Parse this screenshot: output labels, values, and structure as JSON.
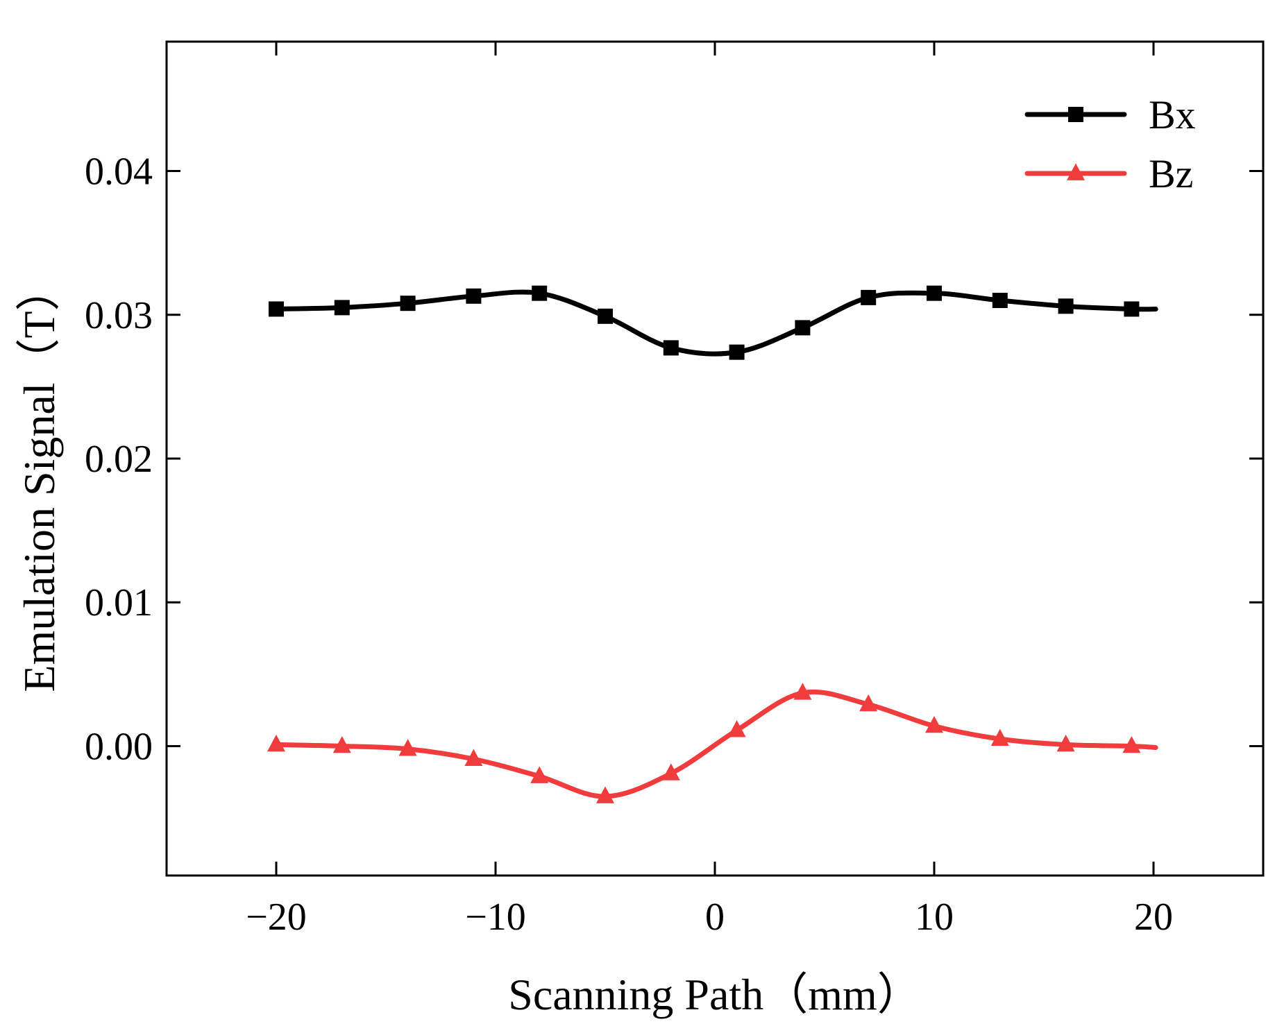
{
  "chart_data": {
    "type": "line",
    "title": "",
    "xlabel": "Scanning Path（mm）",
    "ylabel": "Emulation Signal（T）",
    "xlim": [
      -25,
      25
    ],
    "ylim": [
      -0.009,
      0.049
    ],
    "xticks": [
      -20,
      -10,
      0,
      10,
      20
    ],
    "xtick_labels": [
      "−20",
      "−10",
      "0",
      "10",
      "20"
    ],
    "yticks": [
      0.0,
      0.01,
      0.02,
      0.03,
      0.04
    ],
    "ytick_labels": [
      "0.00",
      "0.01",
      "0.02",
      "0.03",
      "0.04"
    ],
    "grid": false,
    "legend_position": "top-right",
    "x": [
      -20,
      -17,
      -14,
      -11,
      -8,
      -5,
      -2,
      1,
      4,
      7,
      10,
      13,
      16,
      19
    ],
    "series": [
      {
        "name": "Bx",
        "marker": "square",
        "color": "#000000",
        "values": [
          0.0304,
          0.0305,
          0.0308,
          0.0313,
          0.0315,
          0.0299,
          0.0277,
          0.0274,
          0.0291,
          0.0312,
          0.0315,
          0.031,
          0.0306,
          0.0304
        ]
      },
      {
        "name": "Bz",
        "marker": "triangle",
        "color": "#f03c3c",
        "values": [
          0.0001,
          0.0,
          -0.0002,
          -0.0009,
          -0.0021,
          -0.0035,
          -0.0019,
          0.0011,
          0.0037,
          0.0029,
          0.0014,
          0.0005,
          0.0001,
          0.0
        ]
      }
    ]
  }
}
